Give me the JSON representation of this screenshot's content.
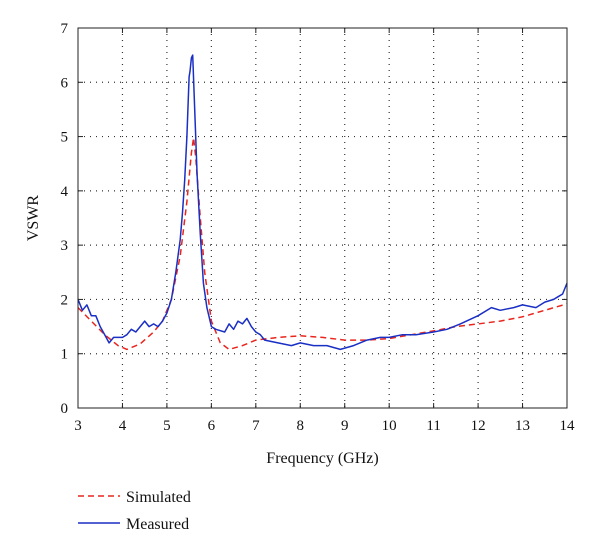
{
  "chart_data": {
    "type": "line",
    "title": "",
    "xlabel": "Frequency (GHz)",
    "ylabel": "VSWR",
    "xlim": [
      3,
      14
    ],
    "ylim": [
      0,
      7
    ],
    "xticks": [
      "3",
      "4",
      "5",
      "6",
      "7",
      "8",
      "9",
      "10",
      "11",
      "12",
      "13",
      "14"
    ],
    "yticks": [
      "0",
      "1",
      "2",
      "3",
      "4",
      "5",
      "6",
      "7"
    ],
    "grid": true,
    "legend_position": "bottom-left",
    "series": [
      {
        "name": "Simulated",
        "style": "dashed",
        "color": "#e8261e",
        "x": [
          3.0,
          3.3,
          3.6,
          3.9,
          4.1,
          4.4,
          4.7,
          4.9,
          5.1,
          5.3,
          5.45,
          5.55,
          5.6,
          5.65,
          5.75,
          5.85,
          6.0,
          6.2,
          6.4,
          6.7,
          7.0,
          7.5,
          8.0,
          8.5,
          9.0,
          9.5,
          10.0,
          10.5,
          11.0,
          11.5,
          12.0,
          12.5,
          13.0,
          13.5,
          14.0
        ],
        "y": [
          1.85,
          1.6,
          1.35,
          1.15,
          1.08,
          1.18,
          1.4,
          1.6,
          2.0,
          2.8,
          3.8,
          4.7,
          4.98,
          4.6,
          3.5,
          2.5,
          1.6,
          1.2,
          1.08,
          1.15,
          1.25,
          1.3,
          1.33,
          1.3,
          1.25,
          1.25,
          1.28,
          1.35,
          1.42,
          1.5,
          1.55,
          1.6,
          1.68,
          1.8,
          1.92
        ]
      },
      {
        "name": "Measured",
        "style": "solid",
        "color": "#1a2fc4",
        "x": [
          3.0,
          3.1,
          3.2,
          3.3,
          3.4,
          3.5,
          3.6,
          3.7,
          3.8,
          4.0,
          4.1,
          4.2,
          4.3,
          4.4,
          4.5,
          4.6,
          4.7,
          4.8,
          4.9,
          5.0,
          5.1,
          5.2,
          5.3,
          5.35,
          5.4,
          5.45,
          5.5,
          5.52,
          5.55,
          5.58,
          5.62,
          5.68,
          5.75,
          5.82,
          5.9,
          6.0,
          6.1,
          6.3,
          6.4,
          6.5,
          6.6,
          6.7,
          6.8,
          6.9,
          7.0,
          7.1,
          7.2,
          7.5,
          7.8,
          8.0,
          8.3,
          8.6,
          8.9,
          9.2,
          9.5,
          9.8,
          10.0,
          10.3,
          10.6,
          11.0,
          11.3,
          11.6,
          12.0,
          12.3,
          12.5,
          12.8,
          13.0,
          13.3,
          13.5,
          13.7,
          13.8,
          13.9,
          14.0
        ],
        "y": [
          2.0,
          1.8,
          1.9,
          1.7,
          1.7,
          1.5,
          1.35,
          1.2,
          1.3,
          1.3,
          1.35,
          1.45,
          1.4,
          1.5,
          1.6,
          1.5,
          1.55,
          1.5,
          1.6,
          1.75,
          2.0,
          2.5,
          3.1,
          3.6,
          4.2,
          5.0,
          6.1,
          6.2,
          6.45,
          6.5,
          5.6,
          4.3,
          3.2,
          2.3,
          1.85,
          1.5,
          1.45,
          1.4,
          1.55,
          1.45,
          1.6,
          1.55,
          1.65,
          1.5,
          1.4,
          1.35,
          1.25,
          1.2,
          1.15,
          1.2,
          1.15,
          1.15,
          1.08,
          1.15,
          1.25,
          1.3,
          1.3,
          1.35,
          1.35,
          1.4,
          1.45,
          1.55,
          1.7,
          1.85,
          1.8,
          1.85,
          1.9,
          1.85,
          1.95,
          2.0,
          2.05,
          2.1,
          2.3
        ]
      }
    ]
  }
}
